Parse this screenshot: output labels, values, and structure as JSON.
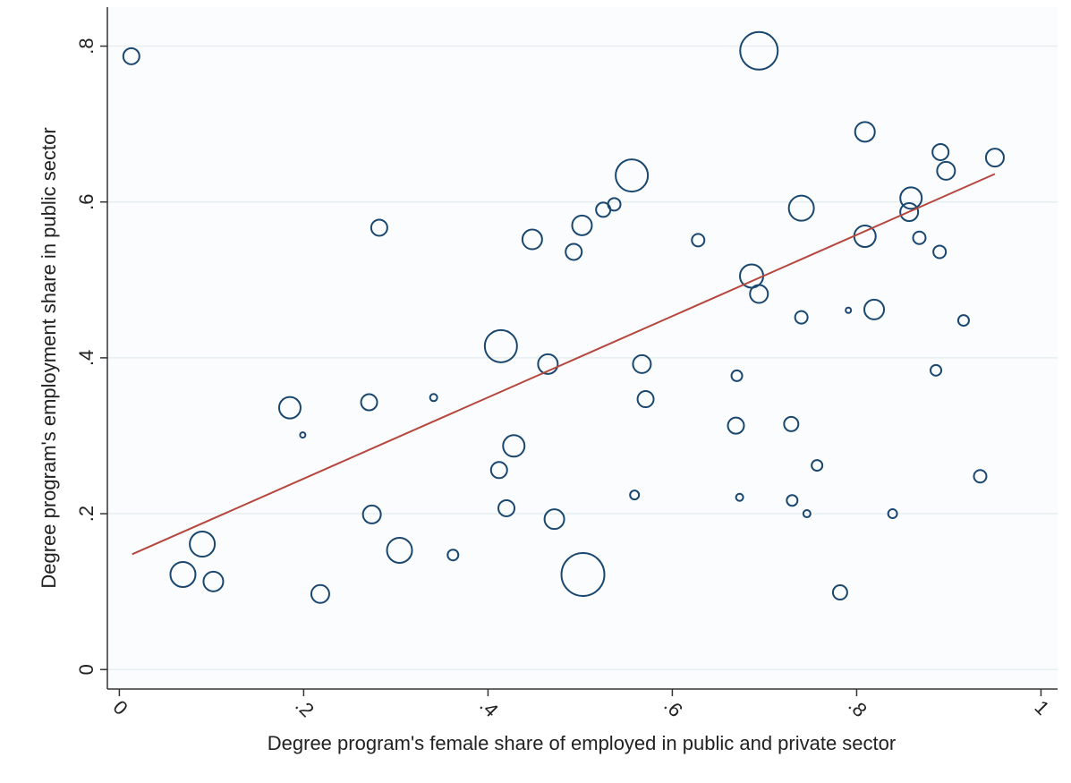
{
  "chart_data": {
    "type": "scatter",
    "xlabel": "Degree program's female share of employed in public and  private sector",
    "ylabel": "Degree program's  employment share in public sector",
    "xlim": [
      -0.013,
      1.018
    ],
    "ylim": [
      -0.025,
      0.85
    ],
    "xticks": [
      0,
      {
        "value": 0.2,
        "label": ".2"
      },
      {
        "value": 0.4,
        "label": ".4"
      },
      {
        "value": 0.6,
        "label": ".6"
      },
      {
        "value": 0.8,
        "label": ".8"
      },
      1
    ],
    "yticks": [
      0,
      {
        "value": 0.2,
        "label": ".2"
      },
      {
        "value": 0.4,
        "label": ".4"
      },
      {
        "value": 0.6,
        "label": ".6"
      },
      {
        "value": 0.8,
        "label": ".8"
      }
    ],
    "grid": true,
    "series": [
      {
        "color": "#1a476f",
        "x": [
          0.013,
          0.694,
          0.809,
          0.891,
          0.95,
          0.897,
          0.556,
          0.859,
          0.74,
          0.857,
          0.537,
          0.525,
          0.502,
          0.282,
          0.448,
          0.628,
          0.809,
          0.868,
          0.493,
          0.89,
          0.686,
          0.694,
          0.819,
          0.791,
          0.74,
          0.916,
          0.414,
          0.465,
          0.567,
          0.886,
          0.67,
          0.341,
          0.571,
          0.271,
          0.185,
          0.199,
          0.669,
          0.729,
          0.428,
          0.412,
          0.757,
          0.934,
          0.559,
          0.673,
          0.73,
          0.42,
          0.274,
          0.472,
          0.746,
          0.839,
          0.09,
          0.304,
          0.362,
          0.069,
          0.102,
          0.503,
          0.218,
          0.782
        ],
        "values": [
          0.787,
          0.794,
          0.69,
          0.664,
          0.657,
          0.64,
          0.634,
          0.605,
          0.592,
          0.587,
          0.597,
          0.59,
          0.57,
          0.567,
          0.552,
          0.551,
          0.556,
          0.554,
          0.536,
          0.536,
          0.505,
          0.482,
          0.462,
          0.461,
          0.452,
          0.448,
          0.415,
          0.392,
          0.392,
          0.384,
          0.377,
          0.349,
          0.347,
          0.343,
          0.336,
          0.301,
          0.313,
          0.315,
          0.287,
          0.256,
          0.262,
          0.248,
          0.224,
          0.221,
          0.217,
          0.207,
          0.199,
          0.193,
          0.2,
          0.2,
          0.161,
          0.153,
          0.147,
          0.122,
          0.113,
          0.122,
          0.097,
          0.099
        ],
        "sizes": [
          9,
          21,
          11,
          9,
          10,
          10,
          18,
          12,
          14,
          10,
          7,
          8,
          11,
          9,
          11,
          7,
          12,
          7,
          9,
          7,
          13,
          10,
          11,
          3,
          7,
          6,
          18,
          11,
          10,
          6,
          6,
          4,
          9,
          9,
          12,
          3,
          9,
          8,
          12,
          9,
          6,
          7,
          5,
          4,
          6,
          9,
          10,
          11,
          4,
          5,
          14,
          14,
          6,
          14,
          11,
          24,
          10,
          8
        ]
      }
    ],
    "fit_line": {
      "color": "#b5473e",
      "x": [
        0.014,
        0.95
      ],
      "values": [
        0.148,
        0.636
      ]
    }
  }
}
